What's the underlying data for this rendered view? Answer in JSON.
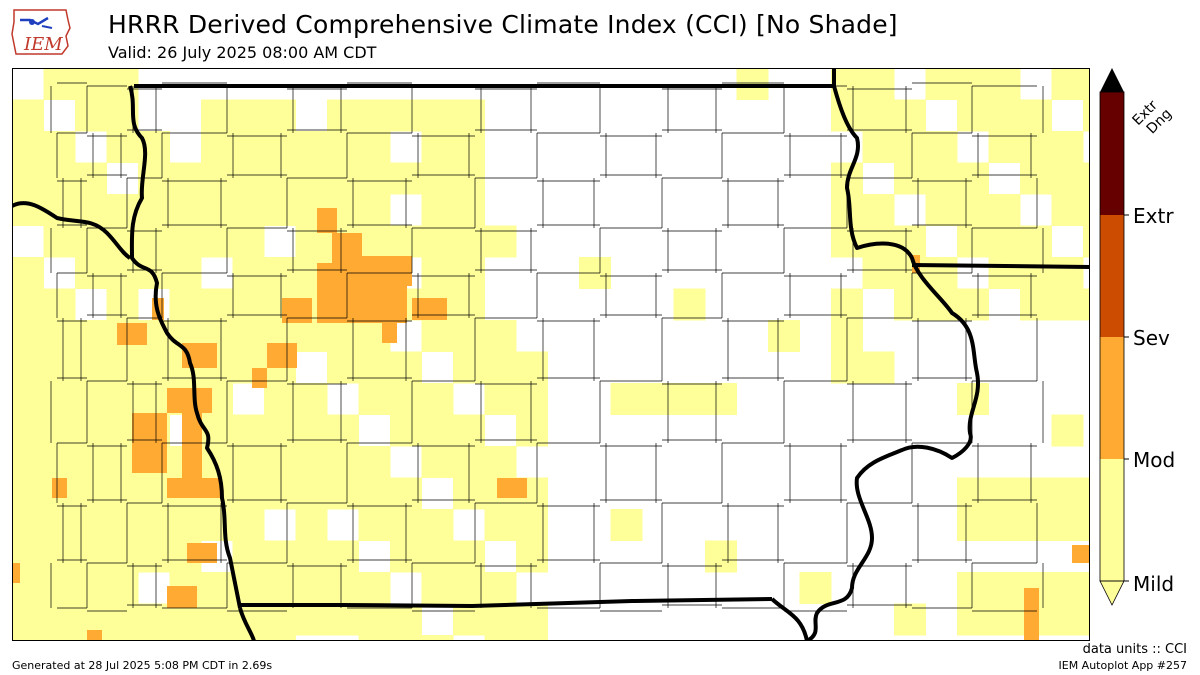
{
  "header": {
    "logo_text": "IEM",
    "title": "HRRR Derived Comprehensive Climate Index (CCI) [No Shade]",
    "valid": "Valid: 26 July 2025 08:00 AM CDT"
  },
  "legend": {
    "levels": [
      {
        "label": "Mild",
        "color": "#ffff99"
      },
      {
        "label": "Mod",
        "color": "#ffaa33"
      },
      {
        "label": "Sev",
        "color": "#cc4c02"
      },
      {
        "label": "Extr",
        "color": "#8b1a00"
      },
      {
        "label": "Extr Dng",
        "color": "#660000"
      }
    ],
    "top_label_line1": "Extr",
    "top_label_line2": "Dng"
  },
  "colors": {
    "mild": "#ffff99",
    "mod": "#ffaa33",
    "sev": "#cc4c02",
    "extr": "#8b1a00",
    "extr_dng": "#660000",
    "border": "#000000"
  },
  "footer": {
    "units": "data units :: CCI",
    "generated": "Generated at 28 Jul 2025 5:08 PM CDT in 2.69s",
    "app": "IEM Autoplot App #257"
  }
}
